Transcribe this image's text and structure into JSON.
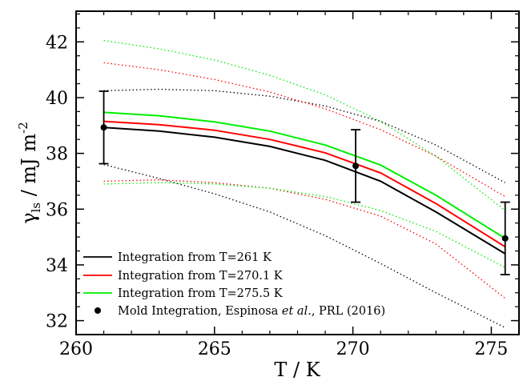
{
  "chart_data": {
    "type": "line",
    "xlabel": "T / K",
    "ylabel_main": "γ",
    "ylabel_sub": "ls",
    "ylabel_unit": " / mJ m",
    "ylabel_sup": "-2",
    "xlim": [
      260,
      276
    ],
    "ylim": [
      31.5,
      43.1
    ],
    "xticks": [
      260,
      265,
      270,
      275
    ],
    "yticks": [
      32,
      34,
      36,
      38,
      40,
      42
    ],
    "grid": false,
    "legend_position": "bottom-left",
    "series": [
      {
        "name": "Integration from T=261 K",
        "color": "#000000",
        "x": [
          261,
          263,
          265,
          267,
          269,
          271,
          273,
          275.5
        ],
        "y": [
          38.93,
          38.8,
          38.58,
          38.25,
          37.75,
          37.0,
          35.9,
          34.4
        ],
        "upper": [
          40.25,
          40.3,
          40.25,
          40.05,
          39.7,
          39.15,
          38.3,
          36.95
        ],
        "lower": [
          37.6,
          37.1,
          36.55,
          35.9,
          35.05,
          34.05,
          33.0,
          31.75
        ]
      },
      {
        "name": "Integration from T=270.1 K",
        "color": "#ff0000",
        "x": [
          261,
          263,
          265,
          267,
          269,
          271,
          273,
          275.5
        ],
        "y": [
          39.15,
          39.03,
          38.83,
          38.5,
          38.02,
          37.3,
          36.2,
          34.65
        ],
        "upper": [
          41.25,
          41.0,
          40.65,
          40.2,
          39.6,
          38.85,
          37.9,
          36.45
        ],
        "lower": [
          37.0,
          37.05,
          36.95,
          36.75,
          36.35,
          35.75,
          34.75,
          32.8
        ]
      },
      {
        "name": "Integration from T=275.5 K",
        "color": "#00ee00",
        "x": [
          261,
          263,
          265,
          267,
          269,
          271,
          273,
          275.5
        ],
        "y": [
          39.47,
          39.35,
          39.13,
          38.8,
          38.3,
          37.58,
          36.5,
          34.95
        ],
        "upper": [
          42.05,
          41.75,
          41.35,
          40.8,
          40.1,
          39.15,
          37.9,
          35.95
        ],
        "lower": [
          36.9,
          36.95,
          36.9,
          36.75,
          36.45,
          35.95,
          35.2,
          33.9
        ]
      }
    ],
    "reference_points": {
      "name": "Mold Integration, Espinosa et al., PRL (2016)",
      "name_parts": [
        "Mold Integration, Espinosa ",
        "et al.",
        ", PRL (2016)"
      ],
      "color": "#000000",
      "points": [
        {
          "x": 261,
          "y": 38.93,
          "err": 1.3
        },
        {
          "x": 270.1,
          "y": 37.55,
          "err": 1.3
        },
        {
          "x": 275.5,
          "y": 34.95,
          "err": 1.3
        }
      ]
    }
  }
}
